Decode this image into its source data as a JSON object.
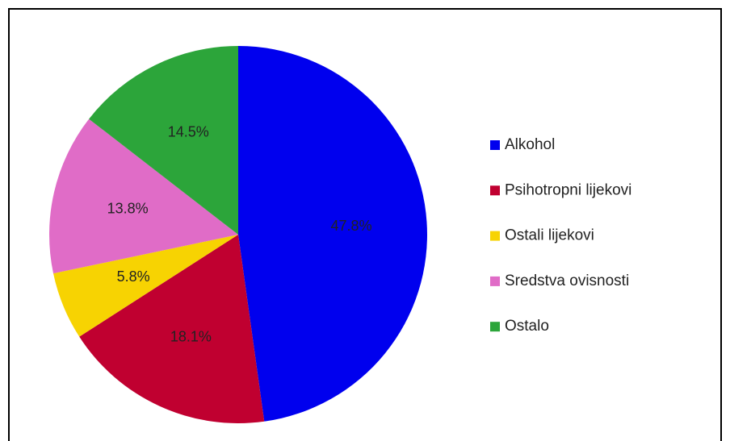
{
  "chart_data": {
    "type": "pie",
    "categories": [
      "Alkohol",
      "Psihotropni lijekovi",
      "Ostali lijekovi",
      "Sredstva ovisnosti",
      "Ostalo"
    ],
    "values": [
      47.8,
      18.1,
      5.8,
      13.8,
      14.5
    ],
    "value_labels": [
      "47.8%",
      "18.1%",
      "5.8%",
      "13.8%",
      "14.5%"
    ],
    "colors": [
      "#0000ee",
      "#c00030",
      "#f7d302",
      "#e06cc7",
      "#2ca53a"
    ],
    "legend": "right"
  }
}
